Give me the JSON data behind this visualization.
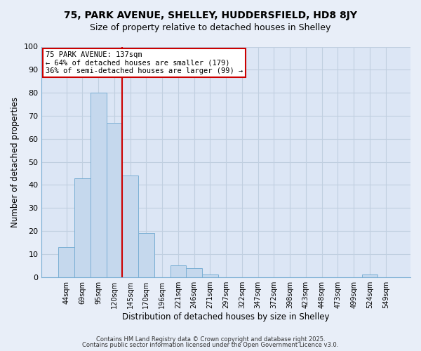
{
  "title": "75, PARK AVENUE, SHELLEY, HUDDERSFIELD, HD8 8JY",
  "subtitle": "Size of property relative to detached houses in Shelley",
  "xlabel": "Distribution of detached houses by size in Shelley",
  "ylabel": "Number of detached properties",
  "bin_labels": [
    "44sqm",
    "69sqm",
    "95sqm",
    "120sqm",
    "145sqm",
    "170sqm",
    "196sqm",
    "221sqm",
    "246sqm",
    "271sqm",
    "297sqm",
    "322sqm",
    "347sqm",
    "372sqm",
    "398sqm",
    "423sqm",
    "448sqm",
    "473sqm",
    "499sqm",
    "524sqm",
    "549sqm"
  ],
  "bar_values": [
    13,
    43,
    80,
    67,
    44,
    19,
    0,
    5,
    4,
    1,
    0,
    0,
    0,
    0,
    0,
    0,
    0,
    0,
    0,
    1,
    0
  ],
  "bar_color": "#c5d8ed",
  "bar_edge_color": "#7bafd4",
  "vline_x_index": 4,
  "vline_color": "#cc0000",
  "annotation_title": "75 PARK AVENUE: 137sqm",
  "annotation_line1": "← 64% of detached houses are smaller (179)",
  "annotation_line2": "36% of semi-detached houses are larger (99) →",
  "annotation_box_color": "#cc0000",
  "ylim": [
    0,
    100
  ],
  "yticks": [
    0,
    10,
    20,
    30,
    40,
    50,
    60,
    70,
    80,
    90,
    100
  ],
  "background_color": "#e8eef8",
  "plot_bg_color": "#dce6f5",
  "grid_color": "#c0cfe0",
  "footer1": "Contains HM Land Registry data © Crown copyright and database right 2025.",
  "footer2": "Contains public sector information licensed under the Open Government Licence v3.0.",
  "title_fontsize": 10,
  "subtitle_fontsize": 9
}
